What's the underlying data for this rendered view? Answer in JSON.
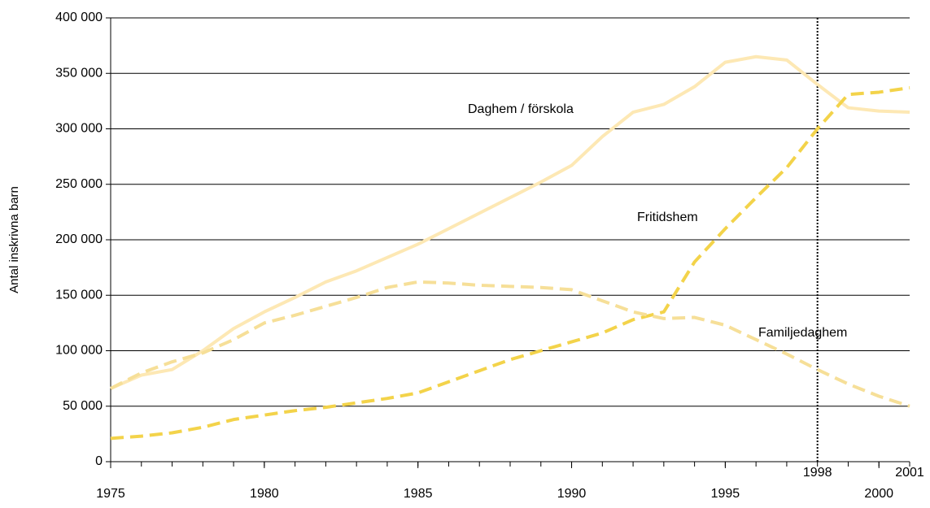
{
  "chart_data": {
    "type": "line",
    "ylabel": "Antal inskrivna barn",
    "x": [
      1975,
      1976,
      1977,
      1978,
      1979,
      1980,
      1981,
      1982,
      1983,
      1984,
      1985,
      1986,
      1987,
      1988,
      1989,
      1990,
      1991,
      1992,
      1993,
      1994,
      1995,
      1996,
      1997,
      1998,
      1999,
      2000,
      2001
    ],
    "series": [
      {
        "name": "Daghem / förskola",
        "color": "#fde8b4",
        "dashed": false,
        "values": [
          66000,
          78000,
          83000,
          100000,
          120000,
          135000,
          148000,
          162000,
          172000,
          184000,
          196000,
          210000,
          224000,
          238000,
          252000,
          267000,
          293000,
          315000,
          322000,
          338000,
          360000,
          365000,
          362000,
          340000,
          319000,
          316000,
          315000
        ]
      },
      {
        "name": "Fritidshem",
        "color": "#f3d34a",
        "dashed": true,
        "values": [
          21000,
          23000,
          26000,
          31000,
          38000,
          42000,
          46000,
          49000,
          53000,
          57000,
          62000,
          72000,
          82000,
          92000,
          100000,
          108000,
          116000,
          128000,
          135000,
          180000,
          210000,
          238000,
          265000,
          300000,
          331000,
          333000,
          337000
        ]
      },
      {
        "name": "Familjedaghem",
        "color": "#f6df98",
        "dashed": true,
        "values": [
          66000,
          80000,
          90000,
          98000,
          110000,
          125000,
          132000,
          140000,
          148000,
          157000,
          162000,
          161000,
          159000,
          158000,
          157000,
          155000,
          145000,
          135000,
          129000,
          130000,
          123000,
          110000,
          97000,
          83000,
          70000,
          59000,
          50000
        ]
      }
    ],
    "xlim": [
      1975,
      2001
    ],
    "xticks": [
      1975,
      1980,
      1985,
      1990,
      1995,
      2000
    ],
    "upper_xticks": [
      1998,
      2001
    ],
    "vline": 1998,
    "ylim": [
      0,
      400000
    ],
    "yticks": [
      0,
      {
        "value": 50000,
        "label": "50 000"
      },
      {
        "value": 100000,
        "label": "100 000"
      },
      {
        "value": 150000,
        "label": "150 000"
      },
      {
        "value": 200000,
        "label": "200 000"
      },
      {
        "value": 250000,
        "label": "250 000"
      },
      {
        "value": 300000,
        "label": "300 000"
      },
      {
        "value": 350000,
        "label": "350 000"
      },
      {
        "value": 400000,
        "label": "400 000"
      }
    ],
    "grid": true
  }
}
